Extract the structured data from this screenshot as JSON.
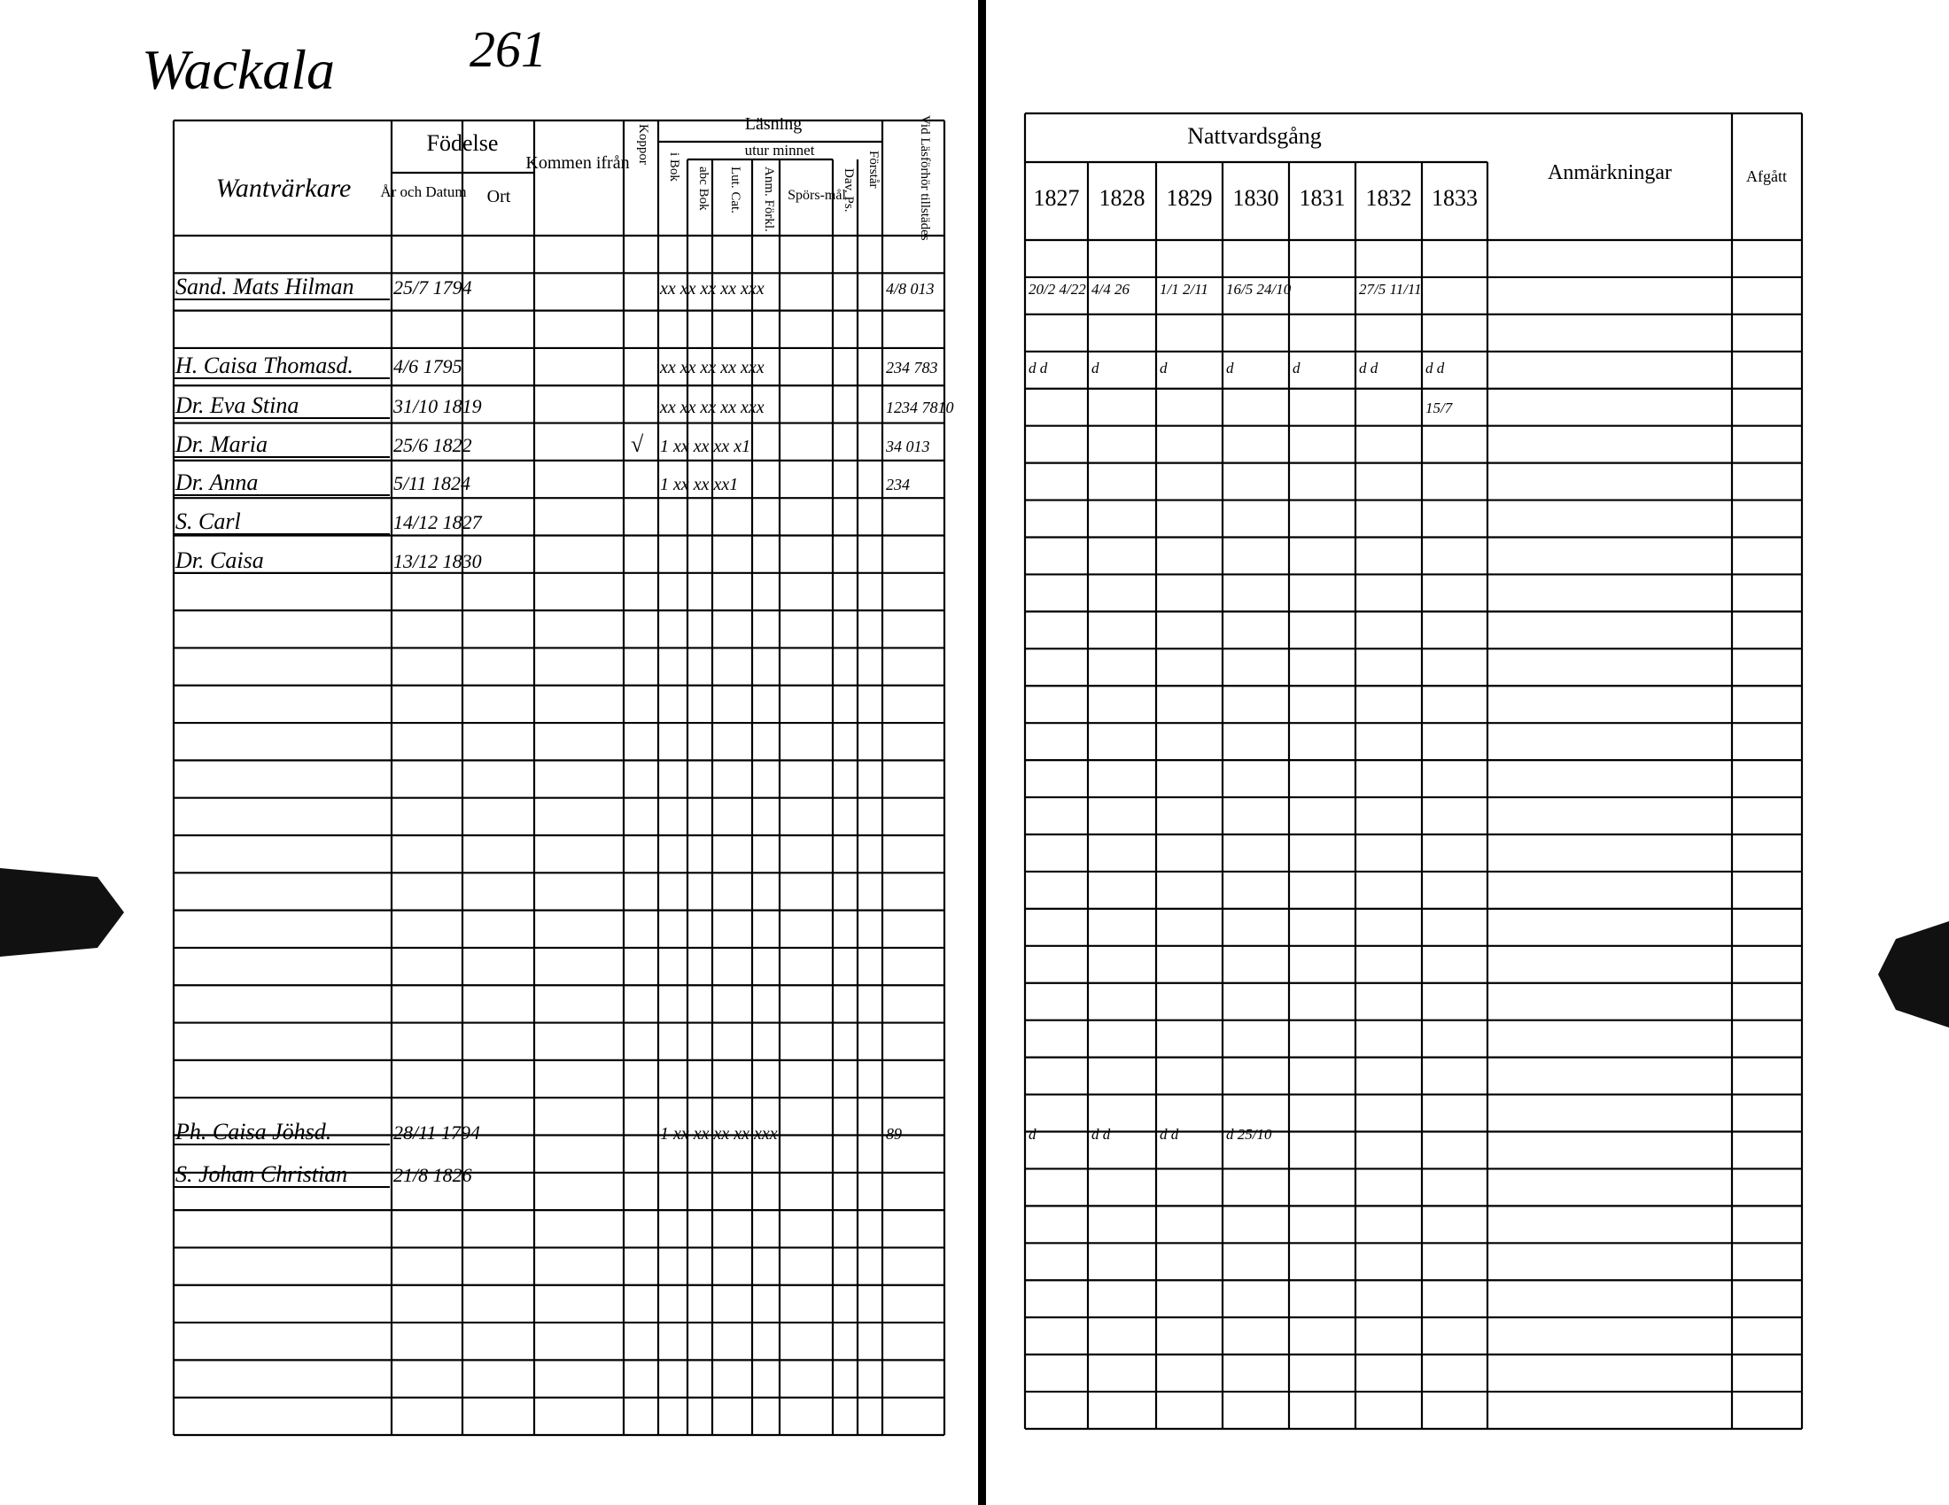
{
  "header": {
    "place": "Wackala",
    "number": "261"
  },
  "left_header": {
    "occupation": "Wantvärkare",
    "birth": "Födelse",
    "birth_date": "År och Datum",
    "birth_place": "Ort",
    "came_from": "Kommen ifrån",
    "smallpox": "Koppor",
    "reading": "Läsning",
    "by_heart": "utur minnet",
    "in_book": "i Bok",
    "abc_book": "abc Bok",
    "catechism": "Lut. Cat.",
    "explanation": "Anm. Förkl.",
    "questions": "Spörs-mål",
    "psalms": "Dav. Ps.",
    "understands": "Förstår",
    "present": "Vid Läsförhör tillstädes"
  },
  "right_header": {
    "communion": "Nattvardsgång",
    "years": [
      "1827",
      "1828",
      "1829",
      "1830",
      "1831",
      "1832",
      "1833"
    ],
    "remarks": "Anmärkningar",
    "departed": "Afgått"
  },
  "rows": [
    {
      "name": "Sand. Mats Hilman",
      "born": "25/7 1794",
      "reading": "xx xx xx xx xxx",
      "present": "4/8 013",
      "communion": [
        "20/2 4/22",
        "4/4 26",
        "1/1 2/11",
        "16/5 24/10",
        null,
        "27/5 11/11",
        null
      ]
    },
    {
      "name": "H. Caisa Thomasd.",
      "born": "4/6 1795",
      "reading": "xx xx xx xx xxx",
      "present": "234 783",
      "communion": [
        "d d",
        "d",
        "d",
        "d",
        "d",
        "d d",
        "d d"
      ]
    },
    {
      "name": "Dr. Eva Stina",
      "born": "31/10 1819",
      "reading": "xx xx xx xx xxx",
      "present": "1234 7810",
      "communion": [
        null,
        null,
        null,
        null,
        null,
        null,
        "15/7"
      ]
    },
    {
      "name": "Dr. Maria",
      "born": "25/6 1822",
      "smallpox": "√",
      "reading": "1 xx xx xx x1",
      "present": "34 013"
    },
    {
      "name": "Dr. Anna",
      "born": "5/11 1824",
      "reading": "1 xx xx xx1",
      "present": "234"
    },
    {
      "name": "S. Carl",
      "born": "14/12 1827"
    },
    {
      "name": "Dr. Caisa",
      "born": "13/12 1830"
    },
    {
      "name": "Ph. Caisa Jöhsd.",
      "born": "28/11 1794",
      "reading": "1 xx xx xx xx xxx",
      "present": "89",
      "communion": [
        "d",
        "d d",
        "d d",
        "d 25/10",
        null,
        null,
        null
      ]
    },
    {
      "name": "S. Johan Christian",
      "born": "21/8 1826"
    }
  ]
}
